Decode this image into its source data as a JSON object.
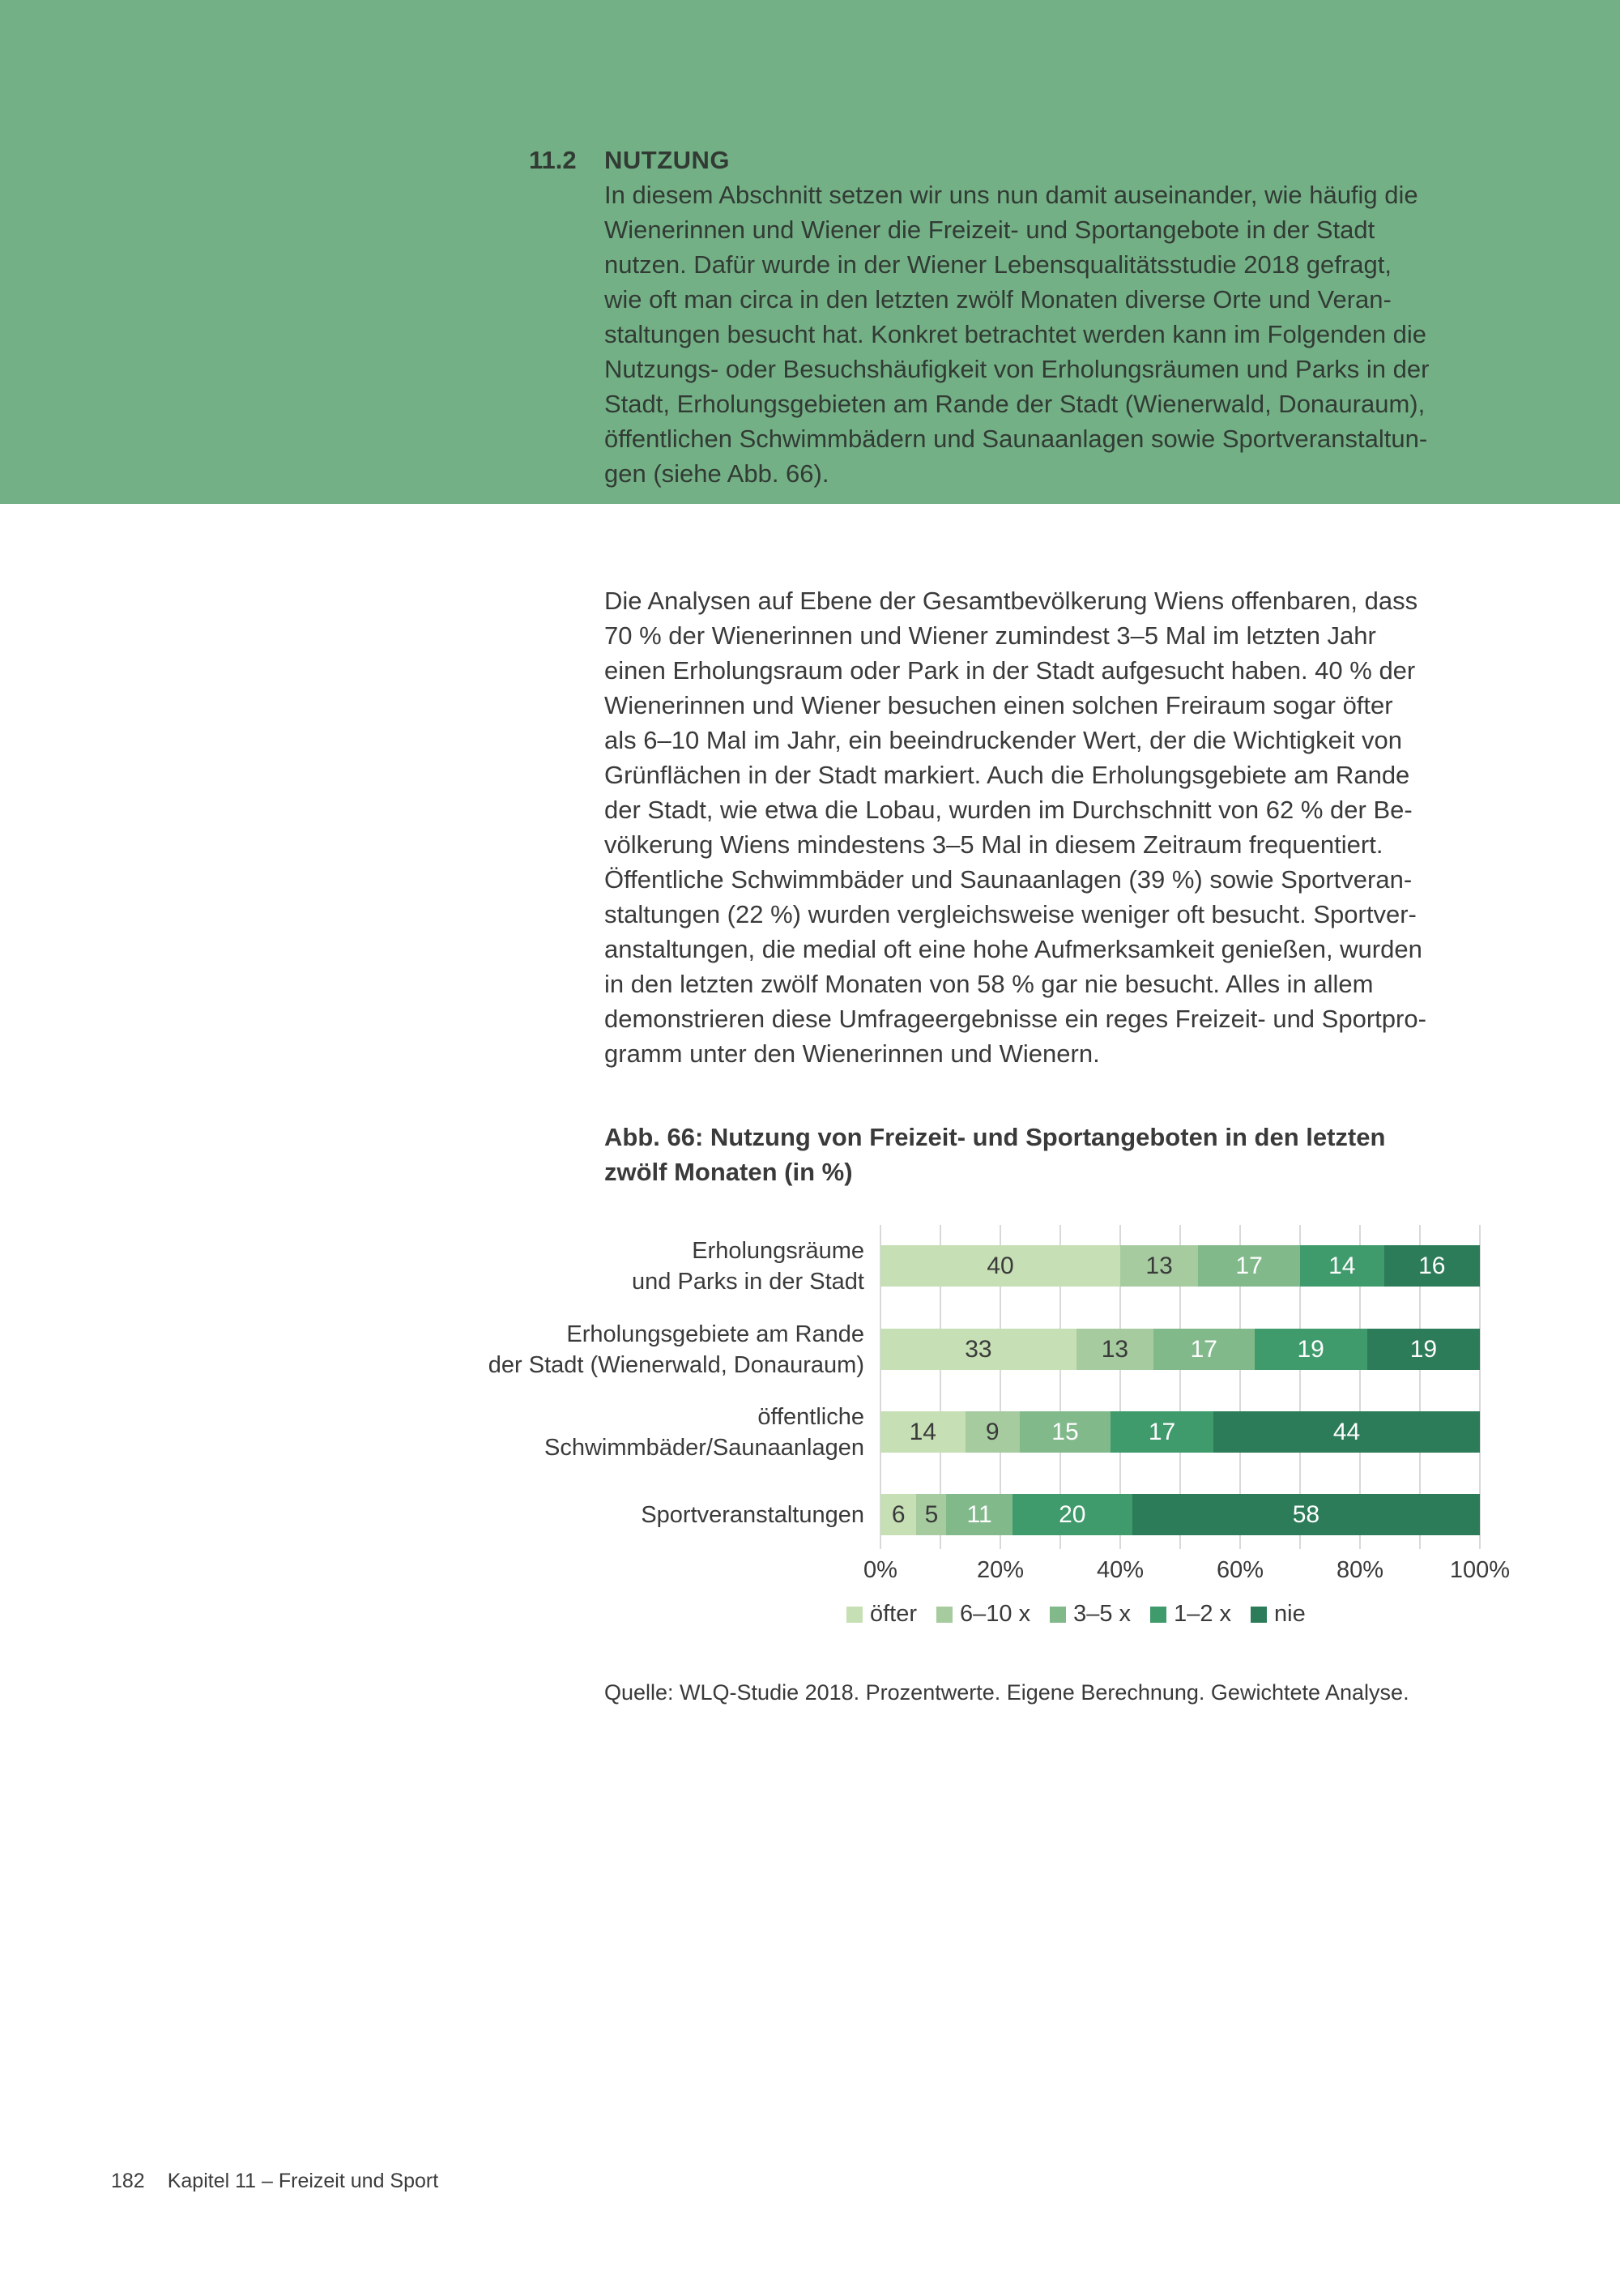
{
  "colors": {
    "band_green": "#74b086",
    "band_text": "#313b34",
    "body_text": "#3a3a3a",
    "grid_line": "#d9d9d9",
    "segment_label_dark": "#3a3a3a",
    "segment_label_light": "#ffffff"
  },
  "header_band": {
    "section_number": "11.2",
    "section_title": "NUTZUNG",
    "paragraph_lines": [
      "In diesem Abschnitt setzen wir uns nun damit auseinander, wie häufig die",
      "Wienerinnen und Wiener die Freizeit- und Sportangebote in der Stadt",
      "nutzen. Dafür wurde in der Wiener Lebensqualitätsstudie 2018 gefragt,",
      "wie oft man circa in den letzten zwölf Monaten diverse Orte und Veran-",
      "staltungen besucht hat. Konkret betrachtet werden kann im Folgenden die",
      "Nutzungs- oder Besuchshäufigkeit von Erholungsräumen und Parks in der",
      "Stadt, Erholungsgebieten am Rande der Stadt (Wienerwald, Donauraum),",
      "öffentlichen Schwimmbädern und Saunaanlagen sowie Sportveranstaltun-",
      "gen (siehe Abb. 66)."
    ]
  },
  "body": {
    "paragraph_lines": [
      "Die Analysen auf Ebene der Gesamtbevölkerung Wiens offenbaren, dass",
      "70 % der Wienerinnen und Wiener zumindest 3–5 Mal im letzten Jahr",
      "einen Erholungsraum oder Park in der Stadt aufgesucht haben. 40 % der",
      "Wienerinnen und Wiener besuchen einen solchen Freiraum sogar öfter",
      "als 6–10 Mal im Jahr, ein beeindruckender Wert, der die Wichtigkeit von",
      "Grünflächen in der Stadt markiert. Auch die Erholungsgebiete am Rande",
      "der Stadt, wie etwa die Lobau, wurden im Durchschnitt von 62 % der Be-",
      "völkerung Wiens mindestens 3–5 Mal in diesem Zeitraum frequentiert.",
      "Öffentliche Schwimmbäder und Saunaanlagen (39 %) sowie Sportveran-",
      "staltungen (22 %) wurden vergleichsweise weniger oft besucht. Sportver-",
      "anstaltungen, die medial oft eine hohe Aufmerksamkeit genießen, wurden",
      "in den letzten zwölf Monaten von 58 % gar nie besucht. Alles in allem",
      "demonstrieren diese Umfrageergebnisse ein reges Freizeit- und Sportpro-",
      "gramm unter den Wienerinnen und Wienern."
    ]
  },
  "figure": {
    "caption_lines": [
      "Abb. 66: Nutzung von Freizeit- und Sportangeboten in den letzten",
      "zwölf Monaten (in %)"
    ],
    "source": "Quelle: WLQ-Studie 2018. Prozentwerte. Eigene Berechnung. Gewichtete Analyse."
  },
  "chart_data": {
    "type": "bar",
    "subtype": "horizontal_stacked",
    "title": "Abb. 66: Nutzung von Freizeit- und Sportangeboten in den letzten zwölf Monaten (in %)",
    "categories": [
      [
        "Erholungsräume",
        "und Parks in der Stadt"
      ],
      [
        "Erholungsgebiete am Rande",
        "der Stadt (Wienerwald, Donauraum)"
      ],
      [
        "öffentliche",
        "Schwimmbäder/Saunaanlagen"
      ],
      [
        "Sportveranstaltungen"
      ]
    ],
    "series": [
      {
        "name": "öfter",
        "color": "#c6dfb5",
        "values": [
          40,
          33,
          14,
          6
        ]
      },
      {
        "name": "6–10 x",
        "color": "#a6cb9f",
        "values": [
          13,
          13,
          9,
          5
        ]
      },
      {
        "name": "3–5 x",
        "color": "#82b98b",
        "values": [
          17,
          17,
          15,
          11
        ]
      },
      {
        "name": "1–2 x",
        "color": "#3f9a6c",
        "values": [
          14,
          19,
          17,
          20
        ]
      },
      {
        "name": "nie",
        "color": "#2d7c59",
        "values": [
          16,
          19,
          44,
          58
        ]
      }
    ],
    "x_ticks": [
      "0%",
      "20%",
      "40%",
      "60%",
      "80%",
      "100%"
    ],
    "xlim": [
      0,
      100
    ],
    "grid": "vertical gridlines every 10%",
    "legend_position": "bottom",
    "value_labels": "inside segments"
  },
  "footer": {
    "page_number": "182",
    "chapter": "Kapitel 11 – Freizeit und Sport"
  }
}
